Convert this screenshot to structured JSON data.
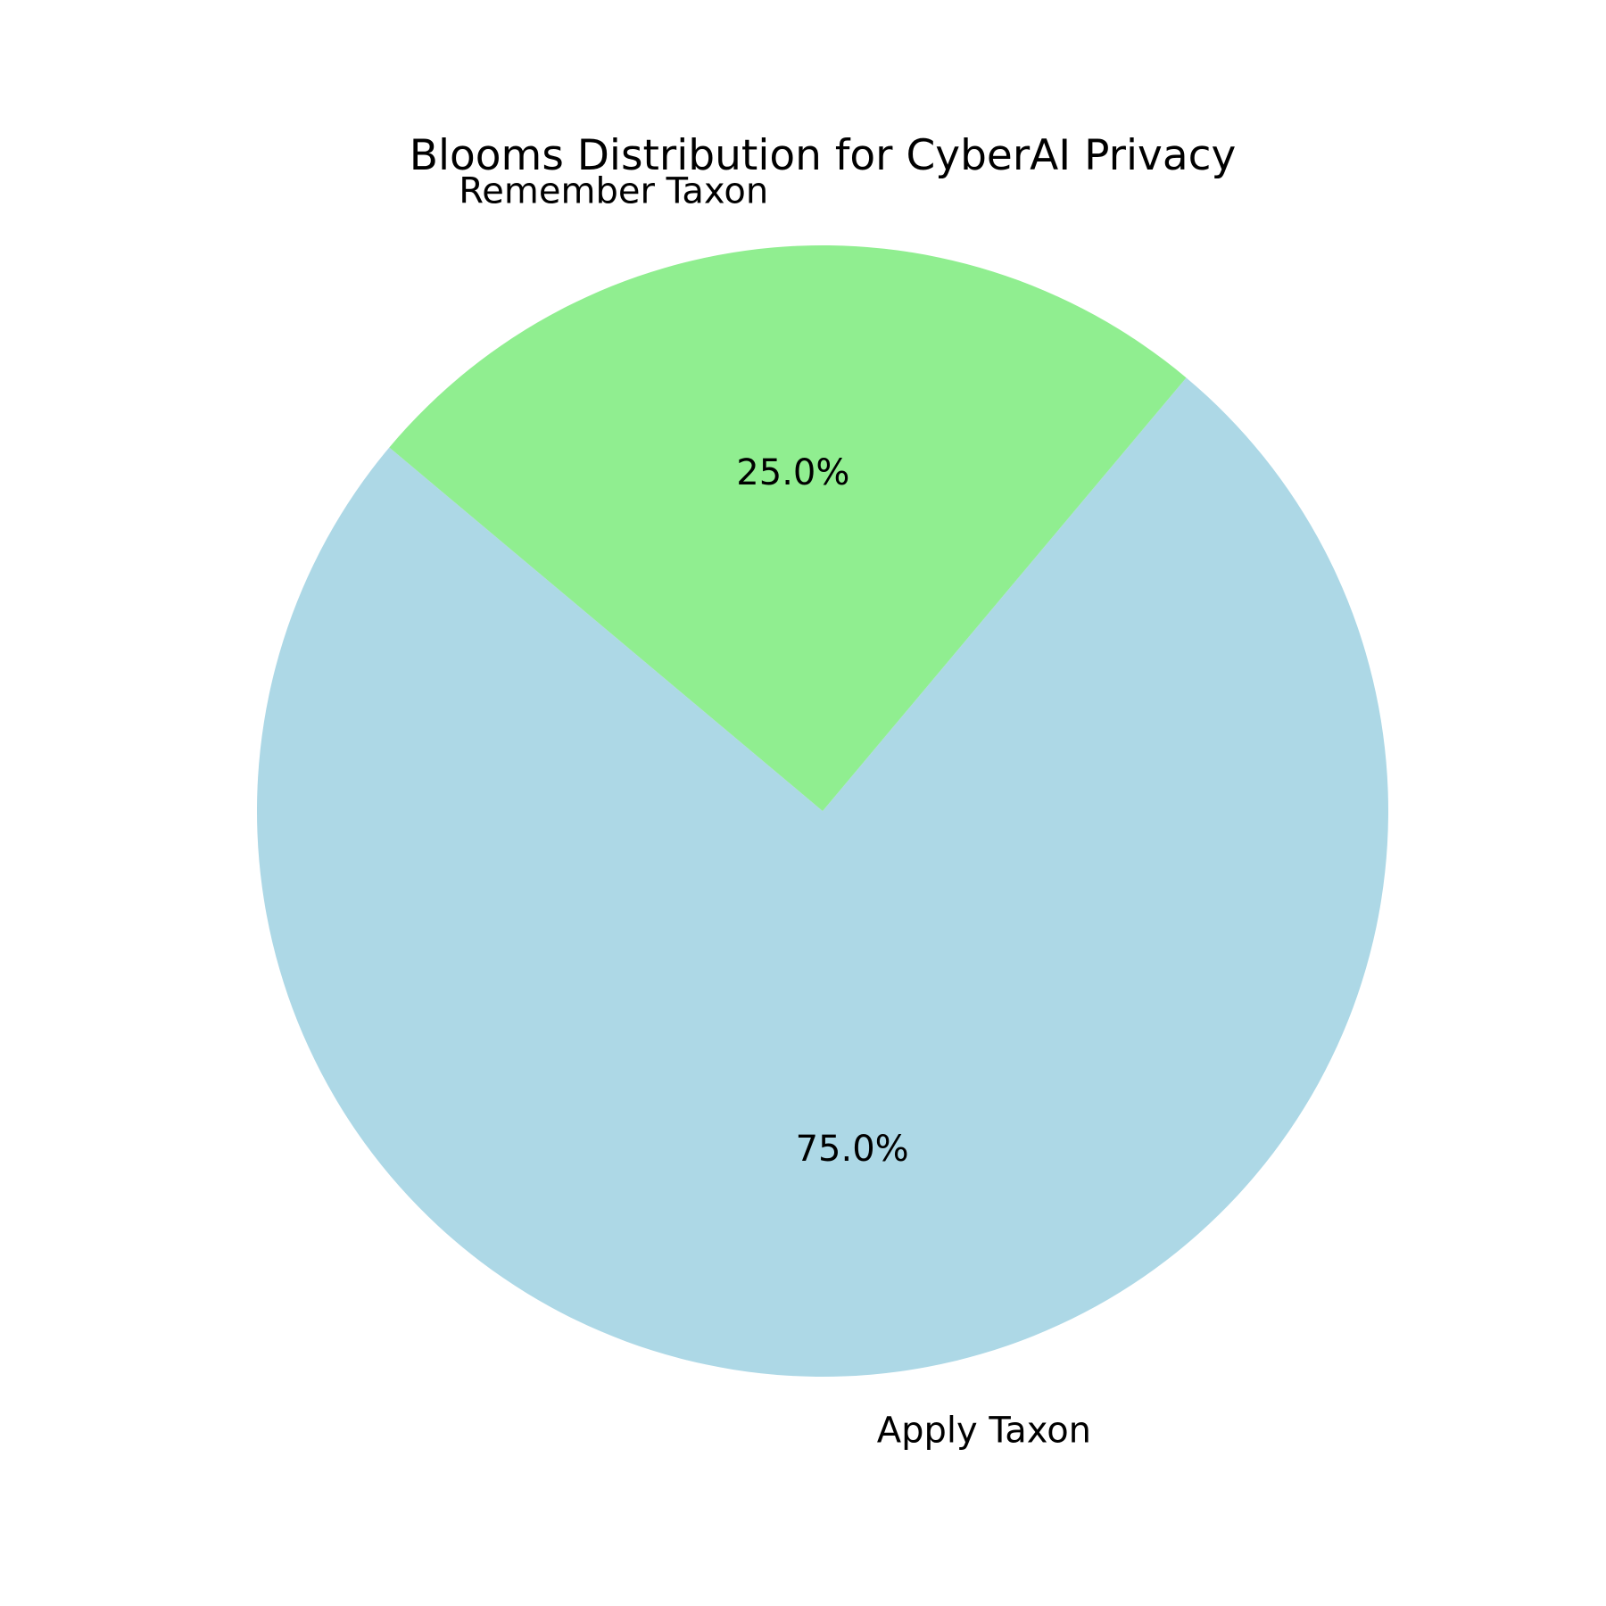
{
  "chart_data": {
    "type": "pie",
    "title": "Blooms Distribution for CyberAI Privacy",
    "slices": [
      {
        "label": "Apply Taxon",
        "value": 75.0,
        "pct_label": "75.0%",
        "color": "#add8e6"
      },
      {
        "label": "Remember Taxon",
        "value": 25.0,
        "pct_label": "25.0%",
        "color": "#90ee90"
      }
    ],
    "start_angle_deg": 140,
    "direction": "counterclockwise",
    "legend": "none"
  }
}
